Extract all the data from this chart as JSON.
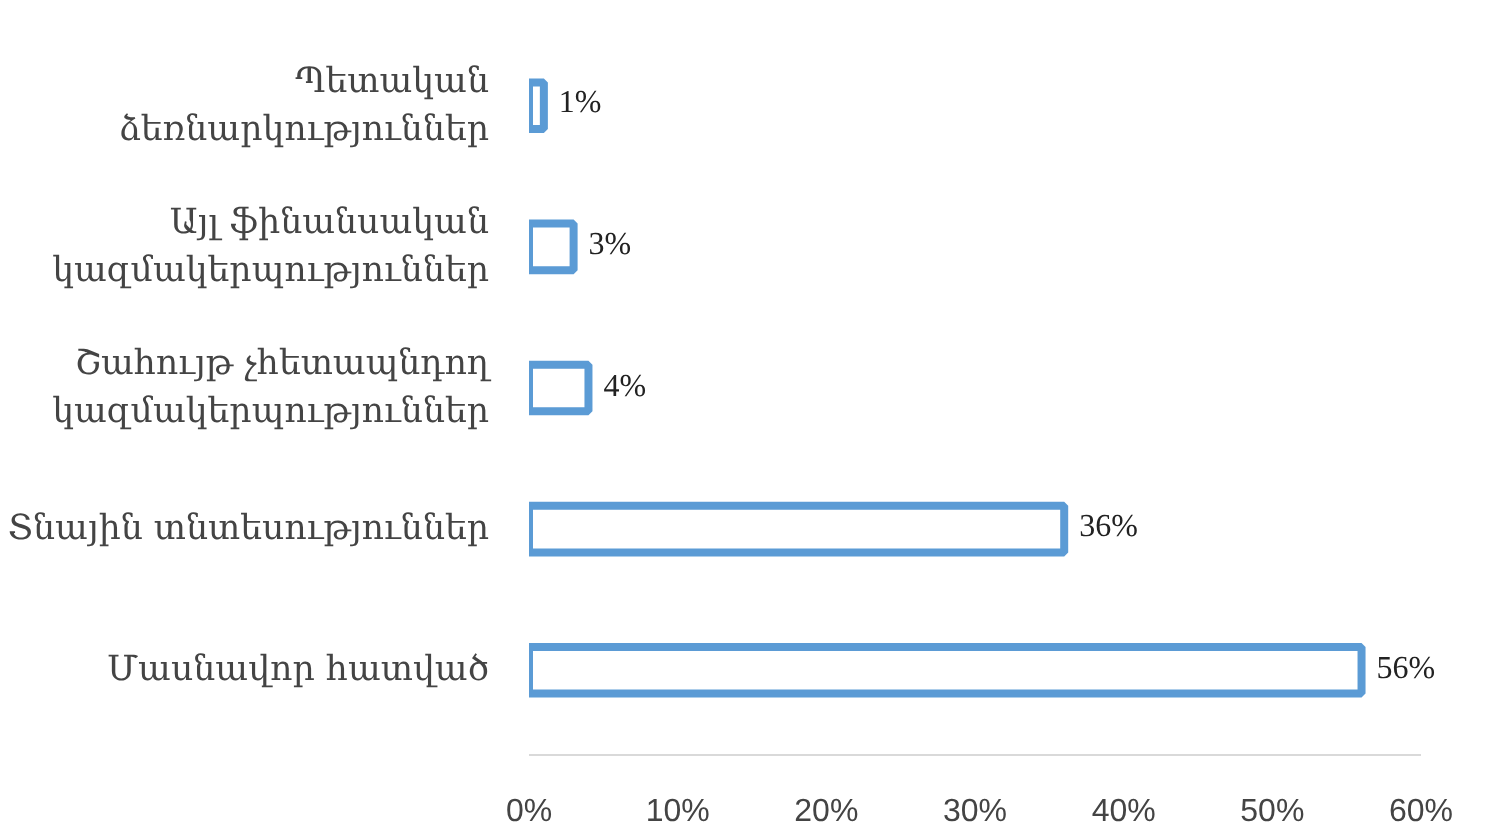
{
  "chart_data": {
    "type": "bar",
    "orientation": "horizontal",
    "categories": [
      "Պետական ձեռնարկություններ",
      "Այլ ֆինանսական կազմակերպություններ",
      "Շահույթ չհետապնդող կազմակերպություններ",
      "Տնային տնտեսություններ",
      "Մասնավոր հատված"
    ],
    "values": [
      1,
      3,
      4,
      36,
      56
    ],
    "color": "#5b9bd5",
    "xlim": [
      0,
      60
    ],
    "xticks": [
      {
        "value": 0,
        "label": "0%"
      },
      {
        "value": 10,
        "label": "10%"
      },
      {
        "value": 20,
        "label": "20%"
      },
      {
        "value": 30,
        "label": "30%"
      },
      {
        "value": 40,
        "label": "40%"
      },
      {
        "value": 50,
        "label": "50%"
      },
      {
        "value": 60,
        "label": "60%"
      }
    ],
    "value_labels": [
      "1%",
      "3%",
      "4%",
      "36%",
      "56%"
    ],
    "grid": false
  }
}
